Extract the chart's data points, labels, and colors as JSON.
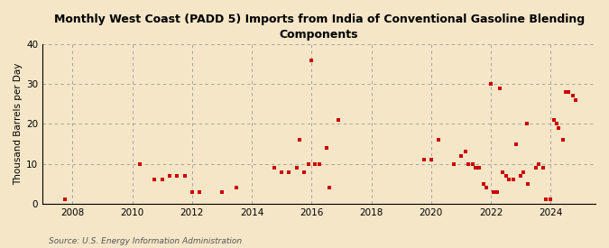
{
  "title": "Monthly West Coast (PADD 5) Imports from India of Conventional Gasoline Blending\nComponents",
  "ylabel": "Thousand Barrels per Day",
  "source": "Source: U.S. Energy Information Administration",
  "background_color": "#f5e6c8",
  "plot_bg_color": "#f5e6c8",
  "marker_color": "#cc0000",
  "marker_size": 12,
  "xlim": [
    2007.0,
    2025.5
  ],
  "ylim": [
    0,
    40
  ],
  "yticks": [
    0,
    10,
    20,
    30,
    40
  ],
  "xticks": [
    2008,
    2010,
    2012,
    2014,
    2016,
    2018,
    2020,
    2022,
    2024
  ],
  "data_points": [
    [
      2007.75,
      1
    ],
    [
      2010.25,
      10
    ],
    [
      2010.75,
      6
    ],
    [
      2011.0,
      6
    ],
    [
      2011.25,
      7
    ],
    [
      2011.5,
      7
    ],
    [
      2011.75,
      7
    ],
    [
      2012.0,
      3
    ],
    [
      2012.25,
      3
    ],
    [
      2013.0,
      3
    ],
    [
      2013.5,
      4
    ],
    [
      2014.75,
      9
    ],
    [
      2015.0,
      8
    ],
    [
      2015.25,
      8
    ],
    [
      2015.5,
      9
    ],
    [
      2015.6,
      16
    ],
    [
      2015.75,
      8
    ],
    [
      2015.9,
      10
    ],
    [
      2016.0,
      36
    ],
    [
      2016.1,
      10
    ],
    [
      2016.25,
      10
    ],
    [
      2016.5,
      14
    ],
    [
      2016.6,
      4
    ],
    [
      2016.9,
      21
    ],
    [
      2019.75,
      11
    ],
    [
      2020.0,
      11
    ],
    [
      2020.25,
      16
    ],
    [
      2020.75,
      10
    ],
    [
      2021.0,
      12
    ],
    [
      2021.15,
      13
    ],
    [
      2021.25,
      10
    ],
    [
      2021.4,
      10
    ],
    [
      2021.5,
      9
    ],
    [
      2021.6,
      9
    ],
    [
      2021.75,
      5
    ],
    [
      2021.85,
      4
    ],
    [
      2022.0,
      30
    ],
    [
      2022.1,
      3
    ],
    [
      2022.2,
      3
    ],
    [
      2022.3,
      29
    ],
    [
      2022.4,
      8
    ],
    [
      2022.5,
      7
    ],
    [
      2022.6,
      6
    ],
    [
      2022.75,
      6
    ],
    [
      2022.85,
      15
    ],
    [
      2023.0,
      7
    ],
    [
      2023.1,
      8
    ],
    [
      2023.2,
      20
    ],
    [
      2023.25,
      5
    ],
    [
      2023.5,
      9
    ],
    [
      2023.6,
      10
    ],
    [
      2023.75,
      9
    ],
    [
      2023.85,
      1
    ],
    [
      2024.0,
      1
    ],
    [
      2024.1,
      21
    ],
    [
      2024.2,
      20
    ],
    [
      2024.25,
      19
    ],
    [
      2024.4,
      16
    ],
    [
      2024.5,
      28
    ],
    [
      2024.6,
      28
    ],
    [
      2024.75,
      27
    ],
    [
      2024.85,
      26
    ]
  ]
}
